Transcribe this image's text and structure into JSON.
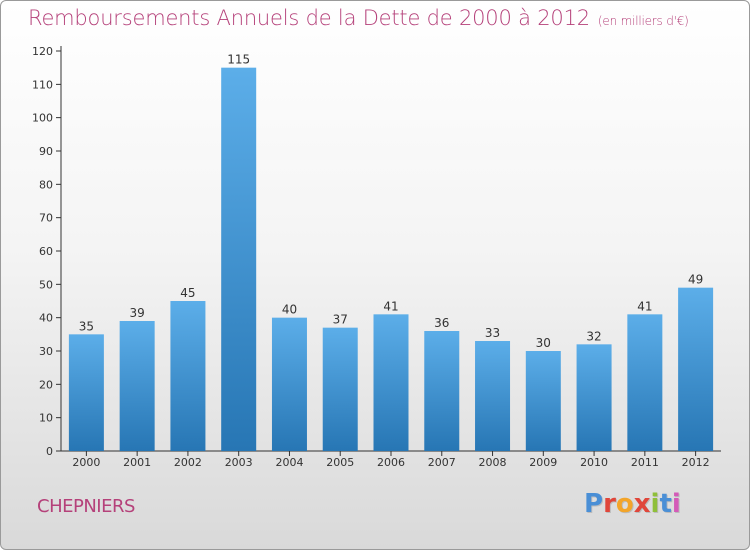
{
  "header": {
    "title": "Remboursements Annuels de la Dette de 2000 à 2012",
    "unit": "(en milliers d'€)"
  },
  "footer": {
    "commune": "CHEPNIERS",
    "brand": [
      "P",
      "r",
      "o",
      "x",
      "i",
      "t",
      "i"
    ],
    "brand_colors": [
      "#4a8fd6",
      "#e0463a",
      "#f3a52a",
      "#e0463a",
      "#8fbf3a",
      "#4a8fd6",
      "#d45bb8"
    ]
  },
  "colors": {
    "bar_top": "#5caee9",
    "bar_bottom": "#2776b4",
    "axis": "#333333",
    "title": "#b5417a"
  },
  "chart_data": {
    "type": "bar",
    "title": "Remboursements Annuels de la Dette de 2000 à 2012",
    "xlabel": "",
    "ylabel": "",
    "categories": [
      "2000",
      "2001",
      "2002",
      "2003",
      "2004",
      "2005",
      "2006",
      "2007",
      "2008",
      "2009",
      "2010",
      "2011",
      "2012"
    ],
    "values": [
      35,
      39,
      45,
      115,
      40,
      37,
      41,
      36,
      33,
      30,
      32,
      41,
      49
    ],
    "ylim": [
      0,
      120
    ],
    "yticks": [
      0,
      10,
      20,
      30,
      40,
      50,
      60,
      70,
      80,
      90,
      100,
      110,
      120
    ],
    "grid": false,
    "legend": "none"
  }
}
